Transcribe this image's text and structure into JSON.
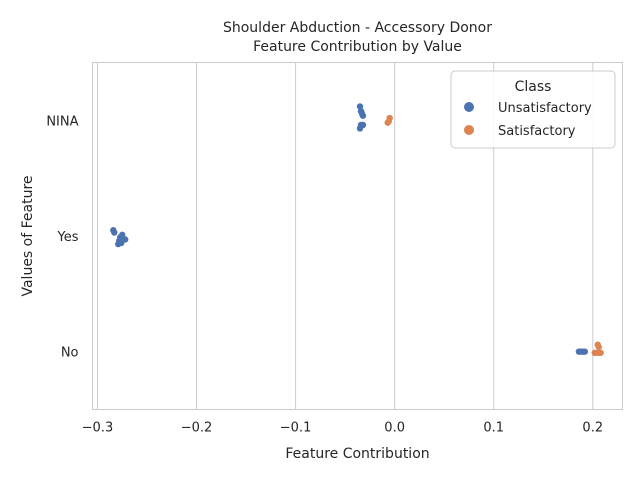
{
  "chart_data": {
    "type": "scatter",
    "title": "Shoulder Abduction - Accessory Donor",
    "subtitle": "Feature Contribution by Value",
    "xlabel": "Feature Contribution",
    "ylabel": "Values of Feature",
    "xlim": [
      -0.305,
      0.23
    ],
    "x_ticks": [
      -0.3,
      -0.2,
      -0.1,
      0.0,
      0.1,
      0.2
    ],
    "x_tick_labels": [
      "−0.3",
      "−0.2",
      "−0.1",
      "0.0",
      "0.1",
      "0.2"
    ],
    "categories": [
      "NINA",
      "Yes",
      "No"
    ],
    "grid": "vertical",
    "legend": {
      "title": "Class",
      "placement": "top-right",
      "entries": [
        "Unsatisfactory",
        "Satisfactory"
      ]
    },
    "colors": {
      "Unsatisfactory": "#4c72b0",
      "Satisfactory": "#dd8452"
    },
    "series": [
      {
        "name": "Unsatisfactory",
        "points": [
          {
            "category": "NINA",
            "x": -0.035,
            "jitter": -0.12
          },
          {
            "category": "NINA",
            "x": -0.034,
            "jitter": -0.08
          },
          {
            "category": "NINA",
            "x": -0.033,
            "jitter": -0.06
          },
          {
            "category": "NINA",
            "x": -0.032,
            "jitter": -0.04
          },
          {
            "category": "NINA",
            "x": -0.034,
            "jitter": 0.04
          },
          {
            "category": "NINA",
            "x": -0.032,
            "jitter": 0.04
          },
          {
            "category": "NINA",
            "x": -0.035,
            "jitter": 0.07
          },
          {
            "category": "Yes",
            "x": -0.284,
            "jitter": -0.05
          },
          {
            "category": "Yes",
            "x": -0.283,
            "jitter": -0.03
          },
          {
            "category": "Yes",
            "x": -0.275,
            "jitter": -0.01
          },
          {
            "category": "Yes",
            "x": -0.277,
            "jitter": 0.01
          },
          {
            "category": "Yes",
            "x": -0.272,
            "jitter": 0.03
          },
          {
            "category": "Yes",
            "x": -0.278,
            "jitter": 0.04
          },
          {
            "category": "Yes",
            "x": -0.276,
            "jitter": 0.06
          },
          {
            "category": "Yes",
            "x": -0.279,
            "jitter": 0.07
          },
          {
            "category": "No",
            "x": 0.186,
            "jitter": 0.0
          },
          {
            "category": "No",
            "x": 0.188,
            "jitter": 0.0
          },
          {
            "category": "No",
            "x": 0.19,
            "jitter": 0.0
          },
          {
            "category": "No",
            "x": 0.192,
            "jitter": 0.0
          }
        ]
      },
      {
        "name": "Satisfactory",
        "points": [
          {
            "category": "NINA",
            "x": -0.005,
            "jitter": -0.02
          },
          {
            "category": "NINA",
            "x": -0.006,
            "jitter": 0.01
          },
          {
            "category": "NINA",
            "x": -0.007,
            "jitter": 0.02
          },
          {
            "category": "No",
            "x": 0.205,
            "jitter": -0.06
          },
          {
            "category": "No",
            "x": 0.206,
            "jitter": -0.04
          },
          {
            "category": "No",
            "x": 0.202,
            "jitter": 0.01
          },
          {
            "category": "No",
            "x": 0.205,
            "jitter": 0.01
          },
          {
            "category": "No",
            "x": 0.208,
            "jitter": 0.01
          }
        ]
      }
    ]
  }
}
